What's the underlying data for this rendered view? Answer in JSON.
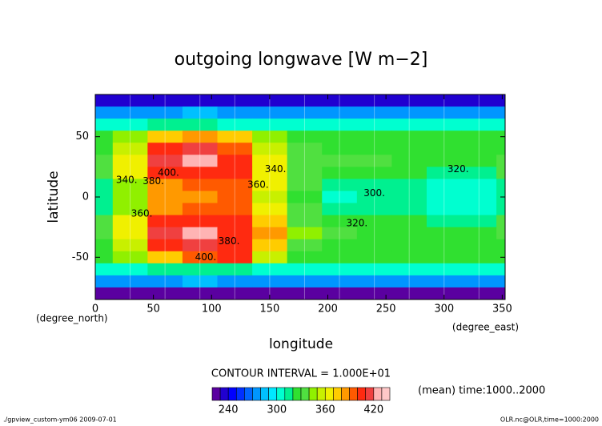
{
  "chart_data": {
    "type": "contour",
    "title": "outgoing longwave [W m−2]",
    "x_label": "longitude",
    "y_label": "latitude",
    "x_units": "(degree_east)",
    "y_units": "(degree_north)",
    "x": [
      0,
      30,
      60,
      90,
      120,
      150,
      180,
      210,
      240,
      270,
      300,
      330,
      360
    ],
    "y": [
      80,
      70,
      60,
      50,
      40,
      30,
      20,
      10,
      0,
      -10,
      -20,
      -30,
      -40,
      -50,
      -60,
      -70,
      -80
    ],
    "values": [
      [
        232,
        232,
        232,
        232,
        232,
        232,
        232,
        232,
        232,
        232,
        232,
        232,
        232
      ],
      [
        275,
        275,
        278,
        280,
        278,
        275,
        275,
        275,
        275,
        275,
        275,
        275,
        275
      ],
      [
        300,
        305,
        310,
        312,
        308,
        302,
        300,
        300,
        300,
        300,
        300,
        300,
        300
      ],
      [
        320,
        340,
        375,
        385,
        370,
        345,
        325,
        320,
        320,
        320,
        320,
        320,
        320
      ],
      [
        325,
        355,
        405,
        415,
        395,
        355,
        330,
        325,
        325,
        325,
        325,
        325,
        325
      ],
      [
        330,
        365,
        415,
        425,
        400,
        365,
        335,
        330,
        330,
        325,
        325,
        325,
        330
      ],
      [
        330,
        360,
        400,
        405,
        400,
        365,
        335,
        325,
        325,
        320,
        318,
        318,
        330
      ],
      [
        315,
        345,
        385,
        390,
        395,
        360,
        330,
        318,
        318,
        312,
        308,
        308,
        315
      ],
      [
        310,
        345,
        380,
        385,
        390,
        355,
        320,
        308,
        315,
        310,
        305,
        305,
        310
      ],
      [
        315,
        345,
        385,
        390,
        395,
        365,
        332,
        318,
        316,
        312,
        308,
        308,
        315
      ],
      [
        330,
        360,
        400,
        405,
        405,
        375,
        335,
        325,
        322,
        320,
        318,
        318,
        330
      ],
      [
        330,
        365,
        415,
        425,
        405,
        385,
        340,
        330,
        328,
        325,
        325,
        325,
        330
      ],
      [
        325,
        355,
        405,
        415,
        400,
        375,
        335,
        325,
        325,
        325,
        325,
        325,
        325
      ],
      [
        320,
        340,
        370,
        395,
        400,
        350,
        325,
        320,
        320,
        320,
        320,
        320,
        320
      ],
      [
        300,
        305,
        310,
        312,
        310,
        302,
        300,
        300,
        300,
        300,
        300,
        300,
        300
      ],
      [
        275,
        275,
        278,
        280,
        278,
        275,
        275,
        275,
        275,
        275,
        275,
        275,
        275
      ],
      [
        228,
        228,
        228,
        228,
        228,
        228,
        228,
        228,
        228,
        228,
        228,
        228,
        228
      ]
    ],
    "xlim": [
      0,
      352.5
    ],
    "ylim": [
      -85,
      85
    ],
    "xticks": [
      0,
      50,
      100,
      150,
      200,
      250,
      300,
      350
    ],
    "yticks": [
      -50,
      0,
      50
    ],
    "levels": [
      220,
      230,
      240,
      250,
      260,
      270,
      280,
      290,
      300,
      310,
      320,
      330,
      340,
      350,
      360,
      370,
      380,
      390,
      400,
      410,
      420,
      430,
      440
    ],
    "colors": [
      "#5a00a0",
      "#2000d0",
      "#0000ff",
      "#0030ff",
      "#0064ff",
      "#0096ff",
      "#00c0ff",
      "#00e8ff",
      "#00ffd0",
      "#00f090",
      "#30e030",
      "#50e040",
      "#90f000",
      "#c8f000",
      "#f0f000",
      "#ffcc00",
      "#ff9900",
      "#ff5a00",
      "#ff2a10",
      "#f04040",
      "#ffb4b4",
      "#ffc8c8"
    ],
    "colorbar_ticks": [
      240,
      300,
      360,
      420
    ],
    "contour_labels": [
      {
        "text": "320.",
        "x": 312,
        "y": 23
      },
      {
        "text": "300.",
        "x": 240,
        "y": 3
      },
      {
        "text": "320.",
        "x": 225,
        "y": -22
      },
      {
        "text": "340.",
        "x": 27,
        "y": 14
      },
      {
        "text": "360.",
        "x": 40,
        "y": -14
      },
      {
        "text": "380.",
        "x": 50,
        "y": 13
      },
      {
        "text": "400.",
        "x": 63,
        "y": 20
      },
      {
        "text": "360.",
        "x": 140,
        "y": 10
      },
      {
        "text": "340.",
        "x": 155,
        "y": 23
      },
      {
        "text": "380.",
        "x": 115,
        "y": -37
      },
      {
        "text": "400.",
        "x": 95,
        "y": -50
      }
    ],
    "contour_interval": "CONTOUR INTERVAL = 1.000E+01",
    "time_note": "(mean) time:1000..2000",
    "footer_left": "./gpview_custom-ym06  2009-07-01",
    "footer_right": "OLR.nc@OLR,time=1000:2000"
  }
}
